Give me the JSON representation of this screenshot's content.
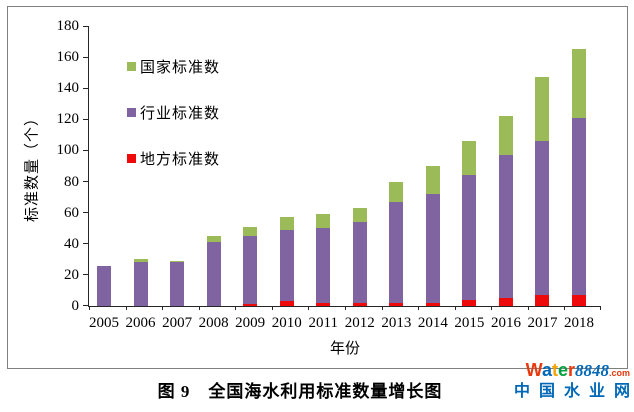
{
  "figure": {
    "caption": "图 9　全国海水利用标准数量增长图"
  },
  "chart_data": {
    "type": "bar",
    "stacked": true,
    "title": "",
    "xlabel": "年份",
    "ylabel": "标准数量（个）",
    "ylim": [
      0,
      180
    ],
    "y_ticks": [
      0,
      20,
      40,
      60,
      80,
      100,
      120,
      140,
      160,
      180
    ],
    "grid": false,
    "legend_position": "upper-left-inside",
    "legend_order": [
      "国家标准数",
      "行业标准数",
      "地方标准数"
    ],
    "categories": [
      "2005",
      "2006",
      "2007",
      "2008",
      "2009",
      "2010",
      "2011",
      "2012",
      "2013",
      "2014",
      "2015",
      "2016",
      "2017",
      "2018"
    ],
    "series": [
      {
        "name": "地方标准数",
        "color": "#ee0a0a",
        "values": [
          0,
          0,
          0,
          0,
          1,
          3,
          2,
          2,
          2,
          2,
          4,
          5,
          7,
          7
        ]
      },
      {
        "name": "行业标准数",
        "color": "#8064a2",
        "values": [
          26,
          28,
          28,
          41,
          44,
          46,
          48,
          52,
          65,
          70,
          80,
          92,
          99,
          114
        ]
      },
      {
        "name": "国家标准数",
        "color": "#9bbb59",
        "values": [
          0,
          2,
          1,
          4,
          6,
          8,
          9,
          9,
          13,
          18,
          22,
          25,
          41,
          44
        ]
      }
    ],
    "totals": [
      26,
      30,
      29,
      45,
      51,
      57,
      59,
      63,
      80,
      90,
      106,
      122,
      147,
      165
    ]
  },
  "colors": {
    "axis": "#262626",
    "border": "#7f7f7f",
    "national": "#9bbb59",
    "industry": "#8064a2",
    "local": "#ee0a0a"
  },
  "watermark": {
    "line1_letters": [
      {
        "ch": "W",
        "color": "#e8380d"
      },
      {
        "ch": "a",
        "color": "#0068b7"
      },
      {
        "ch": "t",
        "color": "#f5a300"
      },
      {
        "ch": "e",
        "color": "#00a040"
      },
      {
        "ch": "r",
        "color": "#e8380d"
      }
    ],
    "number": "8848",
    "number_color": "#0068b7",
    "com": ".com",
    "com_color": "#e8380d",
    "chinese": "中国水业网",
    "chinese_color": "#0068b7"
  }
}
